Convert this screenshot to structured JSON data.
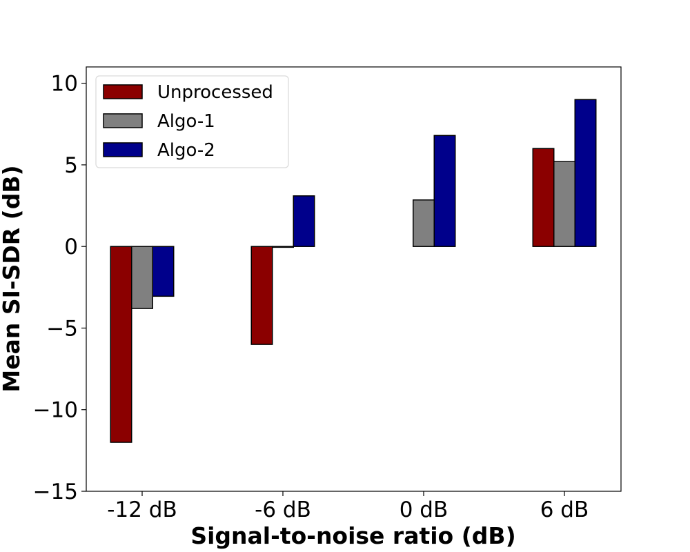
{
  "chart_data": {
    "type": "bar",
    "title": "",
    "xlabel": "Signal-to-noise ratio (dB)",
    "ylabel": "Mean SI-SDR (dB)",
    "categories": [
      "-12 dB",
      "-6 dB",
      "0 dB",
      "6 dB"
    ],
    "series": [
      {
        "name": "Unprocessed",
        "color": "#8b0000",
        "values": [
          -12.0,
          -6.0,
          0.0,
          6.0
        ]
      },
      {
        "name": "Algo-1",
        "color": "#808080",
        "values": [
          -3.8,
          -0.05,
          2.85,
          5.2
        ]
      },
      {
        "name": "Algo-2",
        "color": "#00008b",
        "values": [
          -3.05,
          3.1,
          6.8,
          9.0
        ]
      }
    ],
    "ylim": [
      -15,
      11
    ],
    "yticks": [
      -15,
      -10,
      -5,
      0,
      5,
      10
    ],
    "ytick_labels": [
      "−15",
      "−10",
      "−5",
      "0",
      "5",
      "10"
    ],
    "grid": false,
    "legend_position": "top-left"
  }
}
